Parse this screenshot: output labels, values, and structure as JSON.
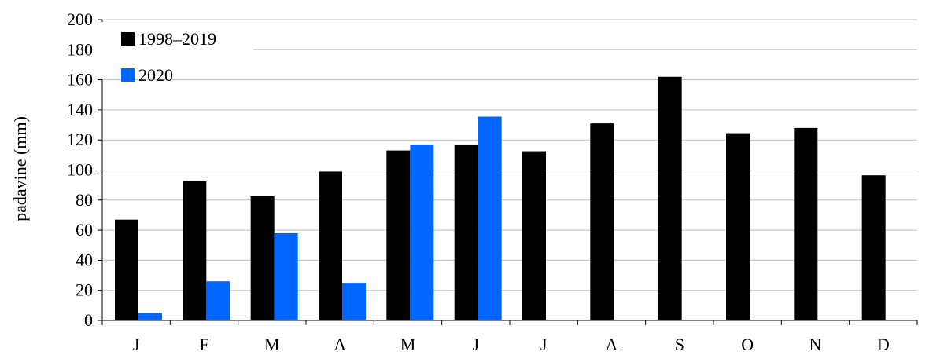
{
  "chart_data": {
    "type": "bar",
    "title": "",
    "xlabel": "",
    "ylabel": "padavine (mm)",
    "ylim": [
      0,
      200
    ],
    "yticks": [
      0,
      20,
      40,
      60,
      80,
      100,
      120,
      140,
      160,
      180,
      200
    ],
    "grid": true,
    "legend_position": "top-left",
    "categories": [
      "J",
      "F",
      "M",
      "A",
      "M",
      "J",
      "J",
      "A",
      "S",
      "O",
      "N",
      "D"
    ],
    "series": [
      {
        "name": "1998–2019",
        "color": "#000000",
        "values": [
          67,
          92.5,
          82.5,
          99,
          113,
          117,
          112.5,
          131,
          162,
          124.5,
          128,
          96.5
        ]
      },
      {
        "name": "2020",
        "color": "#0066ff",
        "values": [
          5,
          26,
          58,
          25,
          117,
          135.5,
          null,
          null,
          null,
          null,
          null,
          null
        ]
      }
    ]
  }
}
